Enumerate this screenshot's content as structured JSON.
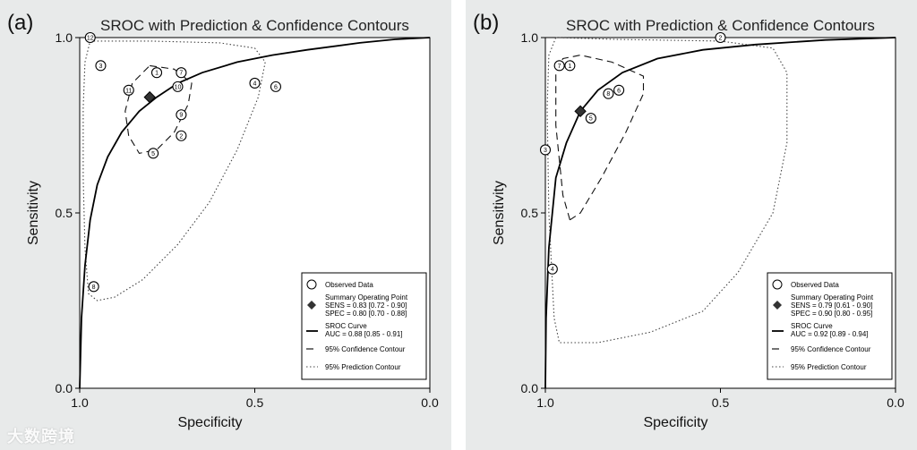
{
  "watermark": "大数跨境",
  "chart_data": [
    {
      "type": "scatter",
      "panel_label": "(a)",
      "title": "SROC with Prediction & Confidence Contours",
      "xlabel": "Specificity",
      "ylabel": "Sensitivity",
      "xlim": [
        1.0,
        0.0
      ],
      "ylim": [
        0.0,
        1.0
      ],
      "x_ticks": [
        "1.0",
        "0.5",
        "0.0"
      ],
      "y_ticks": [
        "0.0",
        "0.5",
        "1.0"
      ],
      "observed": [
        {
          "id": "1",
          "spec": 0.78,
          "sens": 0.9
        },
        {
          "id": "2",
          "spec": 0.71,
          "sens": 0.72
        },
        {
          "id": "3",
          "spec": 0.94,
          "sens": 0.92
        },
        {
          "id": "4",
          "spec": 0.5,
          "sens": 0.87
        },
        {
          "id": "5",
          "spec": 0.79,
          "sens": 0.67
        },
        {
          "id": "6",
          "spec": 0.44,
          "sens": 0.86
        },
        {
          "id": "7",
          "spec": 0.71,
          "sens": 0.9
        },
        {
          "id": "8",
          "spec": 0.96,
          "sens": 0.29
        },
        {
          "id": "9",
          "spec": 0.71,
          "sens": 0.78
        },
        {
          "id": "10",
          "spec": 0.72,
          "sens": 0.86
        },
        {
          "id": "11",
          "spec": 0.86,
          "sens": 0.85
        },
        {
          "id": "12",
          "spec": 0.97,
          "sens": 1.0
        }
      ],
      "summary": {
        "spec": 0.8,
        "sens": 0.83
      },
      "sroc_curve": [
        [
          1.0,
          0.0
        ],
        [
          0.995,
          0.2
        ],
        [
          0.985,
          0.35
        ],
        [
          0.97,
          0.48
        ],
        [
          0.95,
          0.58
        ],
        [
          0.92,
          0.66
        ],
        [
          0.88,
          0.73
        ],
        [
          0.83,
          0.79
        ],
        [
          0.78,
          0.83
        ],
        [
          0.72,
          0.87
        ],
        [
          0.65,
          0.9
        ],
        [
          0.55,
          0.93
        ],
        [
          0.45,
          0.95
        ],
        [
          0.35,
          0.965
        ],
        [
          0.2,
          0.985
        ],
        [
          0.1,
          0.995
        ],
        [
          0.0,
          1.0
        ]
      ],
      "confidence_contour": [
        [
          0.8,
          0.92
        ],
        [
          0.73,
          0.91
        ],
        [
          0.68,
          0.87
        ],
        [
          0.69,
          0.81
        ],
        [
          0.73,
          0.73
        ],
        [
          0.78,
          0.68
        ],
        [
          0.83,
          0.67
        ],
        [
          0.86,
          0.72
        ],
        [
          0.87,
          0.79
        ],
        [
          0.85,
          0.87
        ],
        [
          0.8,
          0.92
        ]
      ],
      "prediction_contour": [
        [
          0.97,
          0.99
        ],
        [
          0.8,
          0.99
        ],
        [
          0.6,
          0.985
        ],
        [
          0.5,
          0.97
        ],
        [
          0.47,
          0.93
        ],
        [
          0.49,
          0.83
        ],
        [
          0.55,
          0.68
        ],
        [
          0.63,
          0.53
        ],
        [
          0.72,
          0.41
        ],
        [
          0.82,
          0.31
        ],
        [
          0.9,
          0.26
        ],
        [
          0.95,
          0.25
        ],
        [
          0.975,
          0.27
        ],
        [
          0.985,
          0.4
        ],
        [
          0.99,
          0.6
        ],
        [
          0.99,
          0.8
        ],
        [
          0.985,
          0.93
        ],
        [
          0.97,
          0.99
        ]
      ],
      "legend": {
        "observed": "Observed Data",
        "summary_label": "Summary Operating Point",
        "summary_sens": "SENS = 0.83 [0.72 - 0.90]",
        "summary_spec": "SPEC = 0.80 [0.70 - 0.88]",
        "curve_label": "SROC Curve",
        "auc": "AUC = 0.88 [0.85 - 0.91]",
        "confidence": "95% Confidence Contour",
        "prediction": "95% Prediction Contour"
      }
    },
    {
      "type": "scatter",
      "panel_label": "(b)",
      "title": "SROC with Prediction & Confidence Contours",
      "xlabel": "Specificity",
      "ylabel": "Sensitivity",
      "xlim": [
        1.0,
        0.0
      ],
      "ylim": [
        0.0,
        1.0
      ],
      "x_ticks": [
        "1.0",
        "0.5",
        "0.0"
      ],
      "y_ticks": [
        "0.0",
        "0.5",
        "1.0"
      ],
      "observed": [
        {
          "id": "1",
          "spec": 0.93,
          "sens": 0.92
        },
        {
          "id": "2",
          "spec": 0.5,
          "sens": 1.0
        },
        {
          "id": "3",
          "spec": 1.0,
          "sens": 0.68
        },
        {
          "id": "4",
          "spec": 0.98,
          "sens": 0.34
        },
        {
          "id": "5",
          "spec": 0.87,
          "sens": 0.77
        },
        {
          "id": "6",
          "spec": 0.79,
          "sens": 0.85
        },
        {
          "id": "7",
          "spec": 0.96,
          "sens": 0.92
        },
        {
          "id": "8",
          "spec": 0.82,
          "sens": 0.84
        }
      ],
      "summary": {
        "spec": 0.9,
        "sens": 0.79
      },
      "sroc_curve": [
        [
          1.0,
          0.0
        ],
        [
          0.998,
          0.2
        ],
        [
          0.99,
          0.4
        ],
        [
          0.97,
          0.6
        ],
        [
          0.94,
          0.7
        ],
        [
          0.9,
          0.79
        ],
        [
          0.85,
          0.85
        ],
        [
          0.78,
          0.9
        ],
        [
          0.68,
          0.94
        ],
        [
          0.55,
          0.965
        ],
        [
          0.4,
          0.98
        ],
        [
          0.2,
          0.993
        ],
        [
          0.0,
          1.0
        ]
      ],
      "confidence_contour": [
        [
          0.93,
          0.48
        ],
        [
          0.95,
          0.55
        ],
        [
          0.97,
          0.75
        ],
        [
          0.97,
          0.9
        ],
        [
          0.95,
          0.94
        ],
        [
          0.9,
          0.95
        ],
        [
          0.81,
          0.93
        ],
        [
          0.72,
          0.89
        ],
        [
          0.72,
          0.84
        ],
        [
          0.77,
          0.73
        ],
        [
          0.84,
          0.6
        ],
        [
          0.9,
          0.5
        ],
        [
          0.93,
          0.48
        ]
      ],
      "prediction_contour": [
        [
          0.97,
          1.0
        ],
        [
          0.8,
          0.995
        ],
        [
          0.5,
          0.99
        ],
        [
          0.35,
          0.97
        ],
        [
          0.31,
          0.9
        ],
        [
          0.31,
          0.7
        ],
        [
          0.35,
          0.5
        ],
        [
          0.45,
          0.33
        ],
        [
          0.55,
          0.22
        ],
        [
          0.7,
          0.16
        ],
        [
          0.85,
          0.13
        ],
        [
          0.96,
          0.13
        ],
        [
          0.975,
          0.2
        ],
        [
          0.99,
          0.5
        ],
        [
          0.995,
          0.8
        ],
        [
          0.99,
          0.95
        ],
        [
          0.97,
          1.0
        ]
      ],
      "legend": {
        "observed": "Observed Data",
        "summary_label": "Summary Operating Point",
        "summary_sens": "SENS = 0.79 [0.61 - 0.90]",
        "summary_spec": "SPEC = 0.90 [0.80 - 0.95]",
        "curve_label": "SROC Curve",
        "auc": "AUC = 0.92 [0.89 - 0.94]",
        "confidence": "95% Confidence Contour",
        "prediction": "95% Prediction Contour"
      }
    }
  ]
}
